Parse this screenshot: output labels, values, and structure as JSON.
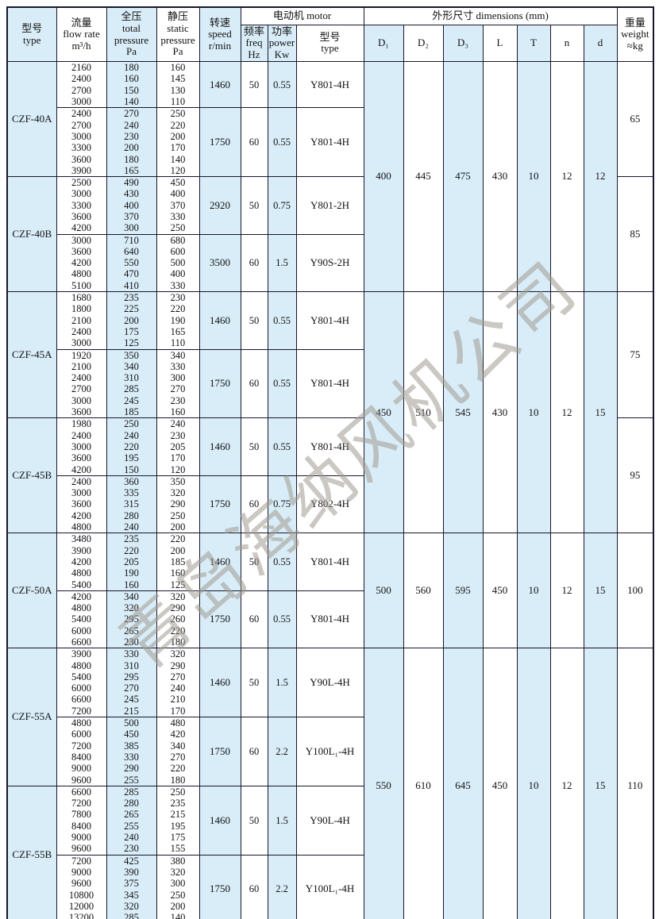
{
  "page": {
    "watermark": "青岛海纳风机公司"
  },
  "colors": {
    "cell_blue": "#d9edf8",
    "border": "#17172b",
    "watermark_gray": "#a29c93"
  },
  "header": {
    "type_col": "型号\ntype",
    "flow_col": "流量\nflow rate\nm³/h",
    "total_col": "全压\ntotal\npressure\nPa",
    "static_col": "静压\nstatic\npressure\nPa",
    "speed_col": "转速\nspeed\nr/min",
    "motor_group": "电动机  motor",
    "freq_col": "频率\nfreq\nHz",
    "power_col": "功率\npower\nKw",
    "motor_type_col": "型号\ntype",
    "dims_group": "外形尺寸   dimensions (mm)",
    "d1": "D₁",
    "d2": "D₂",
    "d3": "D₃",
    "L": "L",
    "T": "T",
    "n": "n",
    "d": "d",
    "weight_col": "重量\nweight\n≈kg"
  },
  "table": {
    "models": [
      {
        "model": "CZF-40A",
        "subs": [
          {
            "flows": [
              "2160",
              "2400",
              "2700",
              "3000"
            ],
            "totals": [
              "180",
              "160",
              "150",
              "140"
            ],
            "statics": [
              "160",
              "145",
              "130",
              "110"
            ],
            "speed": "1460",
            "freq": "50",
            "power": "0.55",
            "motor": "Y801-4H"
          },
          {
            "flows": [
              "2400",
              "2700",
              "3000",
              "3300",
              "3600",
              "3900"
            ],
            "totals": [
              "270",
              "240",
              "230",
              "200",
              "180",
              "165"
            ],
            "statics": [
              "250",
              "220",
              "200",
              "170",
              "140",
              "120"
            ],
            "speed": "1750",
            "freq": "60",
            "power": "0.55",
            "motor": "Y801-4H"
          }
        ]
      },
      {
        "model": "CZF-40B",
        "subs": [
          {
            "flows": [
              "2500",
              "3000",
              "3300",
              "3600",
              "4200"
            ],
            "totals": [
              "490",
              "430",
              "400",
              "370",
              "300"
            ],
            "statics": [
              "450",
              "400",
              "370",
              "330",
              "250"
            ],
            "speed": "2920",
            "freq": "50",
            "power": "0.75",
            "motor": "Y801-2H"
          },
          {
            "flows": [
              "3000",
              "3600",
              "4200",
              "4800",
              "5100"
            ],
            "totals": [
              "710",
              "640",
              "550",
              "470",
              "410"
            ],
            "statics": [
              "680",
              "600",
              "500",
              "400",
              "330"
            ],
            "speed": "3500",
            "freq": "60",
            "power": "1.5",
            "motor": "Y90S-2H"
          }
        ]
      },
      {
        "model": "CZF-45A",
        "subs": [
          {
            "flows": [
              "1680",
              "1800",
              "2100",
              "2400",
              "3000"
            ],
            "totals": [
              "235",
              "225",
              "200",
              "175",
              "125"
            ],
            "statics": [
              "230",
              "220",
              "190",
              "165",
              "110"
            ],
            "speed": "1460",
            "freq": "50",
            "power": "0.55",
            "motor": "Y801-4H"
          },
          {
            "flows": [
              "1920",
              "2100",
              "2400",
              "2700",
              "3000",
              "3600"
            ],
            "totals": [
              "350",
              "340",
              "310",
              "285",
              "245",
              "185"
            ],
            "statics": [
              "340",
              "330",
              "300",
              "270",
              "230",
              "160"
            ],
            "speed": "1750",
            "freq": "60",
            "power": "0.55",
            "motor": "Y801-4H"
          }
        ]
      },
      {
        "model": "CZF-45B",
        "subs": [
          {
            "flows": [
              "1980",
              "2400",
              "3000",
              "3600",
              "4200"
            ],
            "totals": [
              "250",
              "240",
              "220",
              "195",
              "150"
            ],
            "statics": [
              "240",
              "230",
              "205",
              "170",
              "120"
            ],
            "speed": "1460",
            "freq": "50",
            "power": "0.55",
            "motor": "Y801-4H"
          },
          {
            "flows": [
              "2400",
              "3000",
              "3600",
              "4200",
              "4800"
            ],
            "totals": [
              "360",
              "335",
              "315",
              "280",
              "240"
            ],
            "statics": [
              "350",
              "320",
              "290",
              "250",
              "200"
            ],
            "speed": "1750",
            "freq": "60",
            "power": "0.75",
            "motor": "Y802-4H"
          }
        ]
      },
      {
        "model": "CZF-50A",
        "subs": [
          {
            "flows": [
              "3480",
              "3900",
              "4200",
              "4800",
              "5400"
            ],
            "totals": [
              "235",
              "220",
              "205",
              "190",
              "160"
            ],
            "statics": [
              "220",
              "200",
              "185",
              "160",
              "125"
            ],
            "speed": "1460",
            "freq": "50",
            "power": "0.55",
            "motor": "Y801-4H"
          },
          {
            "flows": [
              "4200",
              "4800",
              "5400",
              "6000",
              "6600"
            ],
            "totals": [
              "340",
              "320",
              "295",
              "265",
              "230"
            ],
            "statics": [
              "320",
              "290",
              "260",
              "220",
              "180"
            ],
            "speed": "1750",
            "freq": "60",
            "power": "0.55",
            "motor": "Y801-4H"
          }
        ]
      },
      {
        "model": "CZF-55A",
        "subs": [
          {
            "flows": [
              "3900",
              "4800",
              "5400",
              "6000",
              "6600",
              "7200"
            ],
            "totals": [
              "330",
              "310",
              "295",
              "270",
              "245",
              "215"
            ],
            "statics": [
              "320",
              "290",
              "270",
              "240",
              "210",
              "170"
            ],
            "speed": "1460",
            "freq": "50",
            "power": "1.5",
            "motor": "Y90L-4H"
          },
          {
            "flows": [
              "4800",
              "6000",
              "7200",
              "8400",
              "9000",
              "9600"
            ],
            "totals": [
              "500",
              "450",
              "385",
              "330",
              "290",
              "255"
            ],
            "statics": [
              "480",
              "420",
              "340",
              "270",
              "220",
              "180"
            ],
            "speed": "1750",
            "freq": "60",
            "power": "2.2",
            "motor": "Y100L₁-4H"
          }
        ]
      },
      {
        "model": "CZF-55B",
        "subs": [
          {
            "flows": [
              "6600",
              "7200",
              "7800",
              "8400",
              "9000",
              "9600"
            ],
            "totals": [
              "285",
              "280",
              "265",
              "255",
              "240",
              "230"
            ],
            "statics": [
              "250",
              "235",
              "215",
              "195",
              "175",
              "155"
            ],
            "speed": "1460",
            "freq": "50",
            "power": "1.5",
            "motor": "Y90L-4H"
          },
          {
            "flows": [
              "7200",
              "9000",
              "9600",
              "10800",
              "12000",
              "13200"
            ],
            "totals": [
              "425",
              "390",
              "375",
              "345",
              "320",
              "285"
            ],
            "statics": [
              "380",
              "320",
              "300",
              "250",
              "200",
              "140"
            ],
            "speed": "1750",
            "freq": "60",
            "power": "2.2",
            "motor": "Y100L₁-4H"
          }
        ]
      }
    ],
    "dim_groups": [
      {
        "model_indexes": [
          0,
          1
        ],
        "values": [
          "400",
          "445",
          "475",
          "430",
          "10",
          "12",
          "12"
        ]
      },
      {
        "model_indexes": [
          2,
          3
        ],
        "values": [
          "450",
          "510",
          "545",
          "430",
          "10",
          "12",
          "15"
        ]
      },
      {
        "model_indexes": [
          4
        ],
        "values": [
          "500",
          "560",
          "595",
          "450",
          "10",
          "12",
          "15"
        ]
      },
      {
        "model_indexes": [
          5,
          6
        ],
        "values": [
          "550",
          "610",
          "645",
          "450",
          "10",
          "12",
          "15"
        ]
      }
    ],
    "weight_groups": [
      {
        "model_indexes": [
          0
        ],
        "value": "65"
      },
      {
        "model_indexes": [
          1
        ],
        "value": "85"
      },
      {
        "model_indexes": [
          2
        ],
        "value": "75"
      },
      {
        "model_indexes": [
          3
        ],
        "value": "95"
      },
      {
        "model_indexes": [
          4
        ],
        "value": "100"
      },
      {
        "model_indexes": [
          5,
          6
        ],
        "value": "110"
      }
    ]
  }
}
